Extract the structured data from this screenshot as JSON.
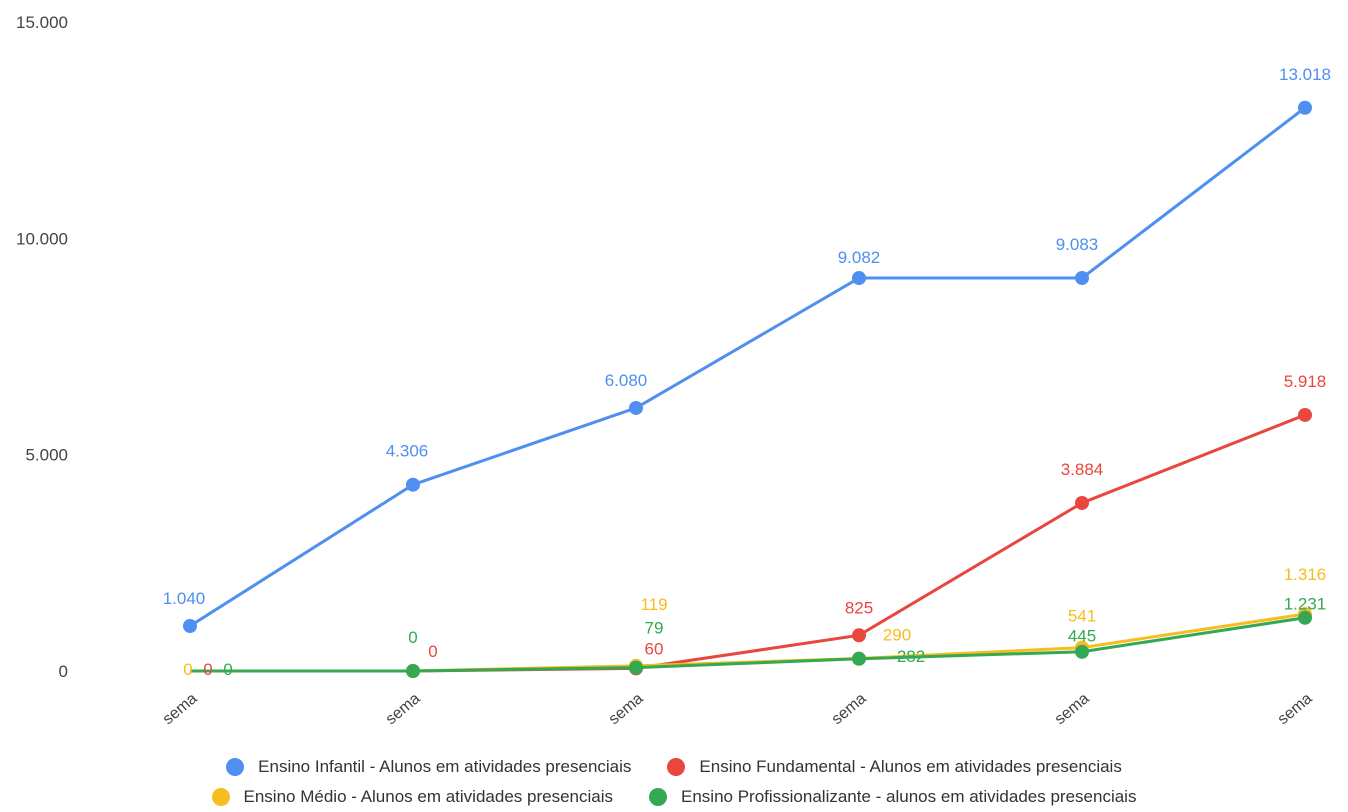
{
  "chart_data": {
    "type": "line",
    "title": "",
    "xlabel": "",
    "ylabel": "",
    "ylim": [
      0,
      15000
    ],
    "yticks": [
      0,
      5000,
      10000,
      15000
    ],
    "ytick_labels": [
      "0",
      "5.000",
      "10.000",
      "15.000"
    ],
    "categories": [
      "sema",
      "sema",
      "sema",
      "sema",
      "sema",
      "sema"
    ],
    "grid": false,
    "legend_position": "bottom",
    "series": [
      {
        "name": "Ensino Infantil - Alunos em atividades presenciais",
        "color": "#4f8ff0",
        "values": [
          1040,
          4306,
          6080,
          9082,
          9083,
          13018
        ],
        "labels": [
          "1.040",
          "4.306",
          "6.080",
          "9.082",
          "9.083",
          "13.018"
        ]
      },
      {
        "name": "Ensino Fundamental - Alunos em atividades presenciais",
        "color": "#e8473e",
        "values": [
          0,
          0,
          60,
          825,
          3884,
          5918
        ],
        "labels": [
          "0",
          "0",
          "60",
          "825",
          "3.884",
          "5.918"
        ]
      },
      {
        "name": "Ensino Médio - Alunos em atividades presenciais",
        "color": "#f7bd1e",
        "values": [
          0,
          0,
          119,
          290,
          541,
          1316
        ],
        "labels": [
          "0",
          "",
          "119",
          "290",
          "541",
          "1.316"
        ]
      },
      {
        "name": "Ensino Profissionalizante - alunos em atividades presenciais",
        "color": "#34a853",
        "values": [
          0,
          0,
          79,
          282,
          445,
          1231
        ],
        "labels": [
          "0",
          "0",
          "79",
          "282",
          "445",
          "1.231"
        ]
      }
    ]
  }
}
